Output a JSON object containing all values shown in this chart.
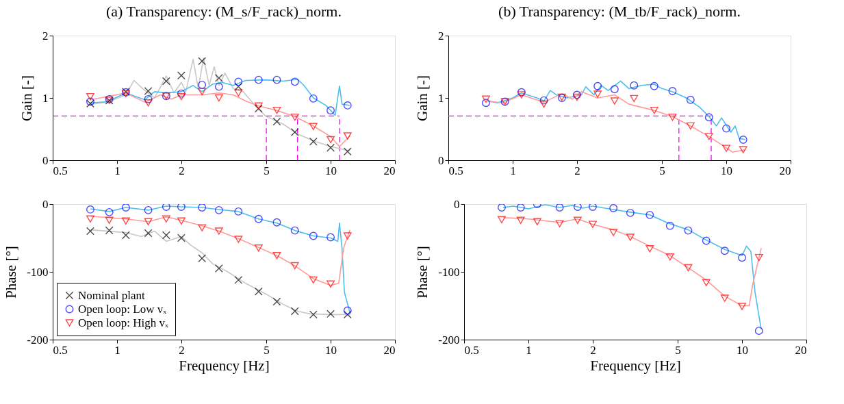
{
  "chart_data": [
    {
      "type": "line",
      "title": "(a) Transparency: (M_s/F_rack)_norm.",
      "ylabel": "Gain [-]",
      "xlim": [
        0.5,
        20
      ],
      "xticks": [
        0.5,
        1,
        2,
        5,
        10,
        20
      ],
      "ylim": [
        0,
        2
      ],
      "yticks": [
        0,
        1,
        2
      ],
      "log": "x",
      "ref_lines": [
        {
          "axis": "y",
          "value": 0.71,
          "color": "#ff00ff",
          "line_style": "dashed"
        },
        {
          "axis": "x",
          "value": 5,
          "color": "#ff00ff",
          "line_style": "dashed"
        },
        {
          "axis": "x",
          "value": 7,
          "color": "#ff00ff",
          "line_style": "dashed"
        },
        {
          "axis": "x",
          "value": 11,
          "color": "#ff00ff",
          "line_style": "dashed"
        }
      ],
      "series": [
        {
          "color": "#c8c8c8",
          "x": [
            0.75,
            0.9,
            1.1,
            1.2,
            1.35,
            1.5,
            1.7,
            1.85,
            2.0,
            2.1,
            2.27,
            2.4,
            2.54,
            2.7,
            2.85,
            3.0,
            3.2,
            3.5,
            3.9,
            4.5,
            5.0,
            6.0,
            7.0,
            8.5,
            10,
            12.3
          ],
          "values": [
            0.9,
            0.93,
            1.05,
            1.28,
            1.12,
            1.0,
            1.35,
            1.08,
            1.25,
            1.1,
            1.62,
            1.15,
            1.64,
            1.2,
            1.5,
            1.2,
            1.4,
            1.15,
            1.1,
            0.85,
            0.7,
            0.58,
            0.42,
            0.3,
            0.22,
            0.15
          ]
        },
        {
          "color": "#4dbeee",
          "x": [
            0.75,
            0.9,
            1.1,
            1.35,
            1.5,
            1.7,
            2.0,
            2.27,
            2.5,
            2.8,
            3.1,
            3.5,
            4,
            5,
            6,
            7,
            7.5,
            8.3,
            9.5,
            10.5,
            11,
            11.3,
            12.3
          ],
          "values": [
            0.92,
            0.94,
            1.08,
            0.97,
            1.1,
            1.08,
            1.1,
            1.2,
            1.1,
            1.22,
            1.25,
            1.2,
            1.28,
            1.29,
            1.27,
            1.3,
            1.2,
            1.0,
            0.88,
            0.72,
            1.19,
            0.9,
            0.88
          ]
        },
        {
          "color": "#ff9a9a",
          "x": [
            0.75,
            1.1,
            1.35,
            1.6,
            1.8,
            2.0,
            2.5,
            3,
            3.5,
            4,
            4.6,
            5.6,
            6.8,
            8.3,
            10,
            11,
            12.3
          ],
          "values": [
            0.97,
            1.08,
            0.93,
            1.05,
            0.98,
            1.05,
            1.05,
            1.08,
            1.05,
            0.95,
            0.87,
            0.8,
            0.7,
            0.55,
            0.38,
            0.22,
            0.39
          ]
        },
        {
          "type": "scatter",
          "marker": "cross",
          "color": "#000000",
          "x": [
            0.75,
            0.92,
            1.1,
            1.4,
            1.7,
            2.0,
            2.5,
            3.0,
            3.7,
            4.6,
            5.6,
            6.8,
            8.3,
            10,
            12
          ],
          "values": [
            0.91,
            0.96,
            1.1,
            1.11,
            1.27,
            1.36,
            1.59,
            1.32,
            1.18,
            0.83,
            0.62,
            0.45,
            0.3,
            0.2,
            0.14
          ]
        },
        {
          "type": "scatter",
          "marker": "circle",
          "color": "#0000ff",
          "x": [
            0.75,
            0.92,
            1.1,
            1.4,
            1.7,
            2.0,
            2.5,
            3.0,
            3.7,
            4.6,
            5.6,
            6.8,
            8.3,
            10,
            12
          ],
          "values": [
            0.94,
            0.98,
            1.09,
            0.98,
            1.03,
            1.07,
            1.21,
            1.18,
            1.26,
            1.29,
            1.29,
            1.26,
            0.99,
            0.8,
            0.88
          ]
        },
        {
          "type": "scatter",
          "marker": "triangle",
          "color": "#ff0000",
          "x": [
            0.75,
            0.92,
            1.1,
            1.4,
            1.7,
            2.0,
            2.5,
            3.0,
            3.7,
            4.6,
            5.6,
            6.8,
            8.3,
            10,
            12
          ],
          "values": [
            1.02,
            0.96,
            1.07,
            0.92,
            1.03,
            1.02,
            1.1,
            1.0,
            1.08,
            0.87,
            0.8,
            0.69,
            0.54,
            0.33,
            0.39
          ]
        }
      ]
    },
    {
      "type": "line",
      "title": "(b) Transparency: (M_tb/F_rack)_norm.",
      "ylabel": "Gain [-]",
      "xlim": [
        0.5,
        20
      ],
      "xticks": [
        0.5,
        1,
        2,
        5,
        10,
        20
      ],
      "ylim": [
        0,
        2
      ],
      "yticks": [
        0,
        1,
        2
      ],
      "log": "x",
      "ref_lines": [
        {
          "axis": "y",
          "value": 0.71,
          "color": "#ff00ff",
          "line_style": "dashed"
        },
        {
          "axis": "x",
          "value": 6,
          "color": "#ff00ff",
          "line_style": "dashed"
        },
        {
          "axis": "x",
          "value": 8.5,
          "color": "#ff00ff",
          "line_style": "dashed"
        }
      ],
      "series": [
        {
          "color": "#4dbeee",
          "x": [
            0.76,
            0.85,
            1.0,
            1.1,
            1.3,
            1.4,
            1.5,
            1.6,
            1.8,
            2.1,
            2.2,
            2.4,
            2.6,
            2.8,
            3.2,
            3.5,
            4,
            4.6,
            5,
            5.6,
            6.5,
            7.5,
            8.3,
            9,
            9.5,
            10.5,
            11,
            11.5,
            12.3
          ],
          "values": [
            0.95,
            0.92,
            1.0,
            1.08,
            1.0,
            0.95,
            1.12,
            1.05,
            1.0,
            1.05,
            1.18,
            1.05,
            1.2,
            1.12,
            1.27,
            1.15,
            1.2,
            1.22,
            1.15,
            1.1,
            1.0,
            0.85,
            0.7,
            0.55,
            0.68,
            0.45,
            0.55,
            0.35,
            0.33
          ]
        },
        {
          "color": "#ff9a9a",
          "x": [
            0.76,
            0.9,
            1.1,
            1.4,
            1.7,
            1.9,
            2.1,
            2.5,
            3.0,
            3.5,
            4,
            4.6,
            5.6,
            6.8,
            8.3,
            10,
            10.7,
            12.3
          ],
          "values": [
            0.95,
            0.92,
            1.05,
            0.93,
            1.07,
            0.98,
            1.1,
            1.0,
            1.05,
            0.9,
            0.85,
            0.8,
            0.7,
            0.55,
            0.38,
            0.2,
            0.13,
            0.17
          ]
        },
        {
          "type": "scatter",
          "marker": "circle",
          "color": "#0000ff",
          "x": [
            0.75,
            0.92,
            1.1,
            1.4,
            1.7,
            2.0,
            2.5,
            3.0,
            3.7,
            4.6,
            5.6,
            6.8,
            8.3,
            10,
            12
          ],
          "values": [
            0.92,
            0.94,
            1.09,
            0.96,
            1.0,
            1.05,
            1.19,
            1.14,
            1.2,
            1.19,
            1.11,
            0.97,
            0.69,
            0.51,
            0.33
          ]
        },
        {
          "type": "scatter",
          "marker": "triangle",
          "color": "#ff0000",
          "x": [
            0.75,
            0.92,
            1.1,
            1.4,
            1.7,
            2.0,
            2.5,
            3.0,
            3.7,
            4.6,
            5.6,
            6.8,
            8.3,
            10,
            12
          ],
          "values": [
            0.98,
            0.94,
            1.05,
            0.9,
            1.01,
            1.01,
            1.06,
            0.95,
            0.99,
            0.8,
            0.69,
            0.55,
            0.38,
            0.19,
            0.17
          ]
        }
      ]
    },
    {
      "type": "line",
      "xlabel": "Frequency [Hz]",
      "ylabel": "Phase [°]",
      "xlim": [
        0.5,
        20
      ],
      "xticks": [
        0.5,
        1,
        2,
        5,
        10,
        20
      ],
      "ylim": [
        -200,
        0
      ],
      "yticks": [
        -200,
        -100,
        0
      ],
      "log": "x",
      "legend": "bottom left",
      "series": [
        {
          "color": "#c8c8c8",
          "x": [
            0.75,
            1.1,
            1.3,
            1.5,
            1.7,
            2.0,
            2.2,
            2.5,
            2.8,
            3.3,
            4,
            5,
            6,
            7,
            8,
            10,
            12.3
          ],
          "values": [
            -38,
            -42,
            -48,
            -40,
            -55,
            -48,
            -60,
            -72,
            -88,
            -100,
            -117,
            -133,
            -148,
            -158,
            -162,
            -163,
            -163
          ]
        },
        {
          "color": "#4dbeee",
          "x": [
            0.75,
            0.92,
            1.1,
            1.4,
            1.7,
            2,
            2.5,
            3,
            3.7,
            4.6,
            5.6,
            6.8,
            8.3,
            10,
            10.8,
            11,
            11.3,
            11.6,
            12.3
          ],
          "values": [
            -7,
            -11,
            -5,
            -9,
            -3,
            -4,
            -5,
            -8,
            -11,
            -22,
            -28,
            -39,
            -47,
            -50,
            -55,
            -28,
            -65,
            -130,
            -160
          ]
        },
        {
          "color": "#ff9a9a",
          "x": [
            0.75,
            1.1,
            1.4,
            1.7,
            2,
            2.5,
            3,
            3.7,
            4.6,
            5.6,
            6.8,
            8.3,
            10,
            10.9,
            11.5,
            12.3
          ],
          "values": [
            -18,
            -22,
            -26,
            -19,
            -24,
            -32,
            -40,
            -51,
            -64,
            -76,
            -91,
            -110,
            -120,
            -117,
            -65,
            -38
          ]
        },
        {
          "type": "scatter",
          "name": "Nominal plant",
          "marker": "cross",
          "color": "#000000",
          "x": [
            0.75,
            0.92,
            1.1,
            1.4,
            1.7,
            2.0,
            2.5,
            3.0,
            3.7,
            4.6,
            5.6,
            6.8,
            8.3,
            10,
            12
          ],
          "values": [
            -40,
            -39,
            -46,
            -43,
            -46,
            -50,
            -80,
            -95,
            -112,
            -129,
            -144,
            -158,
            -163,
            -162,
            -163
          ]
        },
        {
          "type": "scatter",
          "name": "Open loop: Low vₓ",
          "marker": "circle",
          "color": "#0000ff",
          "x": [
            0.75,
            0.92,
            1.1,
            1.4,
            1.7,
            2.0,
            2.5,
            3.0,
            3.7,
            4.6,
            5.6,
            6.8,
            8.3,
            10,
            12
          ],
          "values": [
            -8,
            -12,
            -5,
            -9,
            -4,
            -4,
            -5,
            -9,
            -11,
            -22,
            -27,
            -39,
            -47,
            -49,
            -157
          ]
        },
        {
          "type": "scatter",
          "name": "Open loop: High vₓ",
          "marker": "triangle",
          "color": "#ff0000",
          "x": [
            0.75,
            0.92,
            1.1,
            1.4,
            1.7,
            2.0,
            2.5,
            3.0,
            3.7,
            4.6,
            5.6,
            6.8,
            8.3,
            10,
            12
          ],
          "values": [
            -22,
            -24,
            -25,
            -26,
            -22,
            -25,
            -35,
            -40,
            -52,
            -65,
            -76,
            -91,
            -112,
            -118,
            -47
          ]
        }
      ]
    },
    {
      "type": "line",
      "xlabel": "Frequency [Hz]",
      "ylabel": "Phase [°]",
      "xlim": [
        0.5,
        20
      ],
      "xticks": [
        0.5,
        1,
        2,
        5,
        10,
        20
      ],
      "ylim": [
        -200,
        0
      ],
      "yticks": [
        -200,
        -100,
        0
      ],
      "log": "x",
      "series": [
        {
          "color": "#4dbeee",
          "x": [
            0.76,
            0.85,
            1.0,
            1.2,
            1.4,
            1.6,
            1.8,
            2.0,
            2.5,
            3,
            3.7,
            4.5,
            5.6,
            6.8,
            8.3,
            10,
            10.5,
            11,
            11.5,
            12,
            12.3
          ],
          "values": [
            -5,
            -3,
            -7,
            -1,
            -5,
            -2,
            -6,
            -3,
            -8,
            -12,
            -16,
            -28,
            -38,
            -53,
            -67,
            -76,
            -62,
            -70,
            -130,
            -165,
            -185
          ]
        },
        {
          "color": "#ff9a9a",
          "x": [
            0.76,
            1.0,
            1.4,
            1.7,
            2.0,
            2.5,
            3,
            3.7,
            4.6,
            5.6,
            6.8,
            8.3,
            9,
            10,
            10.8,
            11.2,
            12.3
          ],
          "values": [
            -20,
            -22,
            -27,
            -22,
            -30,
            -38,
            -48,
            -62,
            -76,
            -94,
            -112,
            -136,
            -142,
            -150,
            -150,
            -120,
            -65
          ]
        },
        {
          "type": "scatter",
          "marker": "circle",
          "color": "#0000ff",
          "x": [
            0.75,
            0.92,
            1.1,
            1.4,
            1.7,
            2.0,
            2.5,
            3.0,
            3.7,
            4.6,
            5.6,
            6.8,
            8.3,
            10,
            12
          ],
          "values": [
            -5,
            -5,
            0,
            -5,
            -4,
            -4,
            -6,
            -13,
            -16,
            -32,
            -39,
            -54,
            -69,
            -79,
            -187
          ]
        },
        {
          "type": "scatter",
          "marker": "triangle",
          "color": "#ff0000",
          "x": [
            0.75,
            0.92,
            1.1,
            1.4,
            1.7,
            2.0,
            2.5,
            3.0,
            3.7,
            4.6,
            5.6,
            6.8,
            8.3,
            10,
            12
          ],
          "values": [
            -23,
            -24,
            -26,
            -29,
            -24,
            -30,
            -42,
            -49,
            -66,
            -78,
            -94,
            -116,
            -139,
            -151,
            -79
          ]
        }
      ]
    }
  ]
}
